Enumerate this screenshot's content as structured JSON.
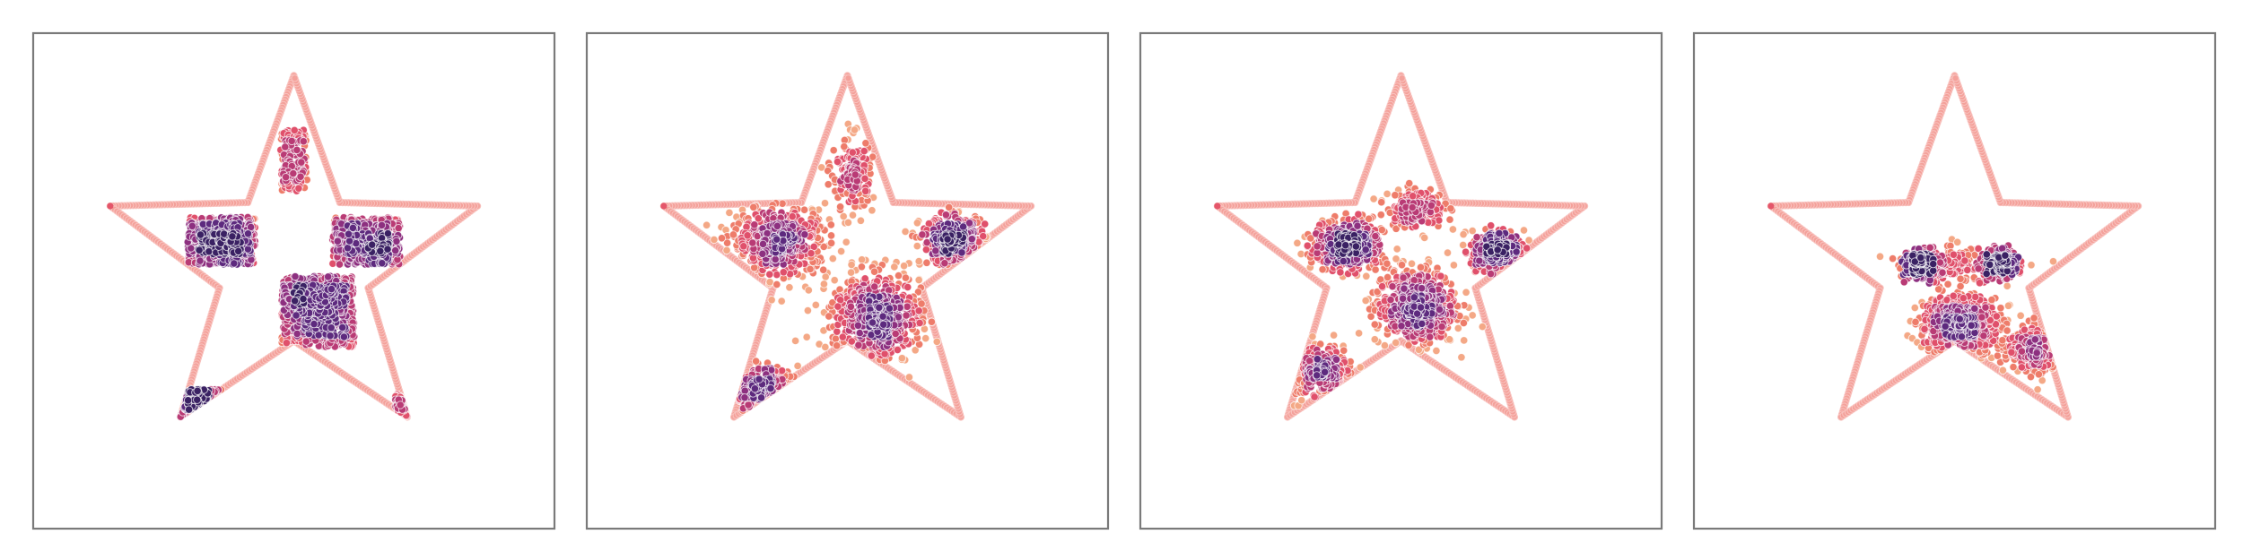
{
  "chart_data": [
    {
      "type": "scatter",
      "boundary": {
        "shape": "star",
        "points": 5
      },
      "clusters": [
        {
          "x": -1.5,
          "y": 0.5,
          "w": 1.4,
          "h": 1.0,
          "n": 480,
          "shape": "square"
        },
        {
          "x": 1.5,
          "y": 0.5,
          "w": 1.4,
          "h": 1.0,
          "n": 420,
          "shape": "square"
        },
        {
          "x": 0.5,
          "y": -1.0,
          "w": 1.5,
          "h": 1.5,
          "n": 620,
          "shape": "square"
        },
        {
          "x": 0.0,
          "y": 2.2,
          "w": 0.55,
          "h": 1.3,
          "n": 150,
          "shape": "square"
        },
        {
          "x": -2.0,
          "y": -3.1,
          "w": 1.2,
          "h": 0.9,
          "n": 170,
          "shape": "square"
        },
        {
          "x": 2.55,
          "y": -3.1,
          "w": 0.9,
          "h": 0.7,
          "n": 60,
          "shape": "square"
        }
      ]
    },
    {
      "type": "scatter",
      "boundary": {
        "shape": "star",
        "points": 5
      },
      "clusters": [
        {
          "x": -1.4,
          "y": 0.5,
          "w": 1.2,
          "h": 0.9,
          "n": 480,
          "shape": "gauss"
        },
        {
          "x": 2.2,
          "y": 0.5,
          "w": 0.8,
          "h": 0.6,
          "n": 360,
          "shape": "gauss"
        },
        {
          "x": 0.6,
          "y": -1.1,
          "w": 1.1,
          "h": 1.1,
          "n": 620,
          "shape": "gauss"
        },
        {
          "x": 0.1,
          "y": 1.9,
          "w": 0.5,
          "h": 1.0,
          "n": 170,
          "shape": "gauss"
        },
        {
          "x": -1.8,
          "y": -2.7,
          "w": 0.9,
          "h": 0.6,
          "n": 220,
          "shape": "gauss"
        }
      ]
    },
    {
      "type": "scatter",
      "boundary": {
        "shape": "star",
        "points": 5
      },
      "clusters": [
        {
          "x": -1.1,
          "y": 0.4,
          "w": 0.85,
          "h": 0.65,
          "n": 460,
          "shape": "gauss"
        },
        {
          "x": 2.0,
          "y": 0.3,
          "w": 0.65,
          "h": 0.5,
          "n": 330,
          "shape": "gauss"
        },
        {
          "x": 0.3,
          "y": -0.9,
          "w": 1.0,
          "h": 1.0,
          "n": 560,
          "shape": "gauss"
        },
        {
          "x": 0.3,
          "y": 1.2,
          "w": 0.7,
          "h": 0.5,
          "n": 180,
          "shape": "gauss"
        },
        {
          "x": -1.7,
          "y": -2.3,
          "w": 0.9,
          "h": 0.7,
          "n": 260,
          "shape": "gauss"
        }
      ]
    },
    {
      "type": "scatter",
      "boundary": {
        "shape": "star",
        "points": 5
      },
      "clusters": [
        {
          "x": -0.75,
          "y": 0.0,
          "w": 0.35,
          "h": 0.3,
          "n": 300,
          "shape": "gauss"
        },
        {
          "x": 1.0,
          "y": 0.0,
          "w": 0.35,
          "h": 0.3,
          "n": 300,
          "shape": "gauss"
        },
        {
          "x": 0.1,
          "y": -1.3,
          "w": 1.0,
          "h": 0.75,
          "n": 620,
          "shape": "gauss"
        },
        {
          "x": 1.7,
          "y": -1.8,
          "w": 0.7,
          "h": 0.6,
          "n": 260,
          "shape": "gauss"
        },
        {
          "x": 0.1,
          "y": 0.0,
          "w": 1.3,
          "h": 0.45,
          "n": 200,
          "shape": "gauss"
        }
      ]
    }
  ]
}
